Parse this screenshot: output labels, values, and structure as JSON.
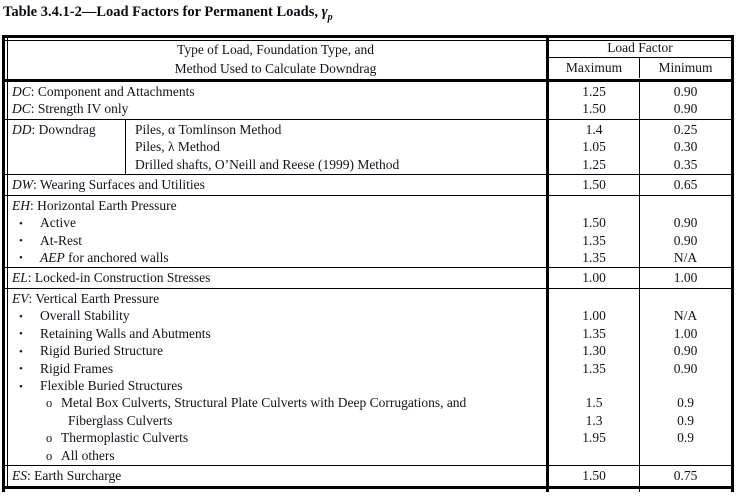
{
  "title": {
    "prefix": "Table 3.4.1-2—Load Factors for Permanent Loads, ",
    "gamma": "γ",
    "gamma_sub": "p"
  },
  "table": {
    "header": {
      "desc_line1": "Type of Load, Foundation Type, and",
      "desc_line2": "Method Used to Calculate Downdrag",
      "load_factor": "Load Factor",
      "maximum": "Maximum",
      "minimum": "Minimum"
    },
    "bands": [
      {
        "name": "DC",
        "lines": [
          {
            "sym": "DC",
            "rest": ": Component and Attachments"
          },
          {
            "sym": "DC",
            "rest": ": Strength IV only"
          }
        ],
        "max": [
          "1.25",
          "1.50"
        ],
        "min": [
          "0.90",
          "0.90"
        ]
      },
      {
        "name": "DD",
        "left": {
          "sym": "DD",
          "rest": ": Downdrag"
        },
        "methods": [
          "Piles, α Tomlinson Method",
          "Piles, λ Method",
          "Drilled shafts, O’Neill and Reese (1999) Method"
        ],
        "max": [
          "1.4",
          "1.05",
          "1.25"
        ],
        "min": [
          "0.25",
          "0.30",
          "0.35"
        ]
      },
      {
        "name": "DW",
        "lines": [
          {
            "sym": "DW",
            "rest": ": Wearing Surfaces and Utilities"
          }
        ],
        "max": [
          "1.50"
        ],
        "min": [
          "0.65"
        ]
      },
      {
        "name": "EH",
        "lines": [
          {
            "sym": "EH",
            "rest": ": Horizontal Earth Pressure"
          },
          {
            "b": "•",
            "rest": "Active"
          },
          {
            "b": "•",
            "rest": "At-Rest"
          },
          {
            "b": "•",
            "sym": "AEP",
            "rest": " for anchored walls"
          }
        ],
        "max": [
          "",
          "1.50",
          "1.35",
          "1.35"
        ],
        "min": [
          "",
          "0.90",
          "0.90",
          "N/A"
        ]
      },
      {
        "name": "EL",
        "lines": [
          {
            "sym": "EL",
            "rest": ": Locked-in Construction Stresses"
          }
        ],
        "max": [
          "1.00"
        ],
        "min": [
          "1.00"
        ]
      },
      {
        "name": "EV",
        "lines": [
          {
            "sym": "EV",
            "rest": ": Vertical Earth Pressure"
          },
          {
            "b": "•",
            "rest": "Overall Stability"
          },
          {
            "b": "•",
            "rest": "Retaining Walls and Abutments"
          },
          {
            "b": "•",
            "rest": "Rigid Buried Structure"
          },
          {
            "b": "•",
            "rest": "Rigid Frames"
          },
          {
            "b": "•",
            "rest": "Flexible Buried Structures"
          },
          {
            "b2": "o",
            "rest": "Metal Box Culverts, Structural Plate Culverts with Deep Corrugations, and"
          },
          {
            "cont": true,
            "rest": "Fiberglass Culverts"
          },
          {
            "b2": "o",
            "rest": "Thermoplastic Culverts"
          },
          {
            "b2": "o",
            "rest": "All others"
          }
        ],
        "max": [
          "",
          "1.00",
          "1.35",
          "1.30",
          "1.35",
          "",
          "1.5",
          "1.3",
          "1.95",
          ""
        ],
        "min": [
          "",
          "N/A",
          "1.00",
          "0.90",
          "0.90",
          "",
          "0.9",
          "0.9",
          "0.9",
          ""
        ]
      },
      {
        "name": "ES",
        "lines": [
          {
            "sym": "ES",
            "rest": ": Earth Surcharge"
          }
        ],
        "max": [
          "1.50"
        ],
        "min": [
          "0.75"
        ]
      }
    ]
  }
}
